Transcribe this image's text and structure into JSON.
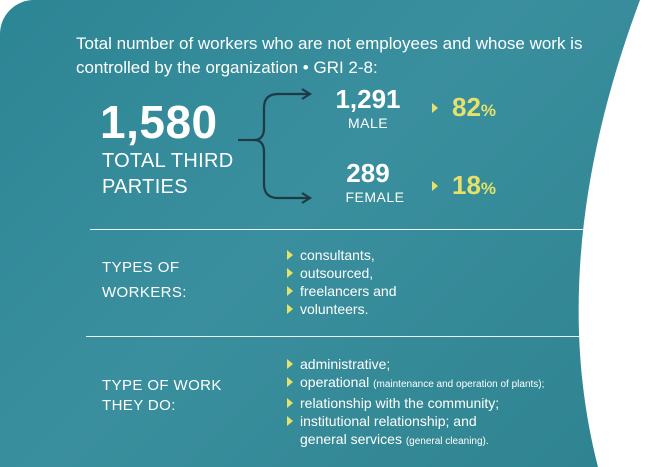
{
  "title": "Total number of workers who are not employees and whose work is controlled by the organization • GRI 2-8:",
  "total": {
    "value": "1,580",
    "label_line1": "TOTAL THIRD",
    "label_line2": "PARTIES"
  },
  "male": {
    "value": "1,291",
    "label": "MALE",
    "percent_value": "82",
    "percent_sign": "%"
  },
  "female": {
    "value": "289",
    "label": "FEMALE",
    "percent_value": "18",
    "percent_sign": "%"
  },
  "types_of_workers": {
    "label_line1": "TYPES OF",
    "label_line2": "WORKERS:",
    "items": [
      "consultants,",
      "outsourced,",
      "freelancers and",
      "volunteers."
    ]
  },
  "type_of_work": {
    "label_line1": "TYPE OF WORK",
    "label_line2": "THEY DO:",
    "items": [
      {
        "text": "administrative;",
        "note": ""
      },
      {
        "text": "operational ",
        "note": "(maintenance and operation of plants);"
      },
      {
        "text": "relationship with the community;",
        "note": ""
      },
      {
        "text": "institutional relationship; and",
        "note": ""
      }
    ],
    "continuation": {
      "text": "general services ",
      "note": "(general cleaning)."
    }
  },
  "colors": {
    "background": "#3a8f9e",
    "accent": "#e4e26a",
    "text": "#ffffff"
  },
  "icons": [
    "connector-arrows",
    "pointer-triangle"
  ]
}
